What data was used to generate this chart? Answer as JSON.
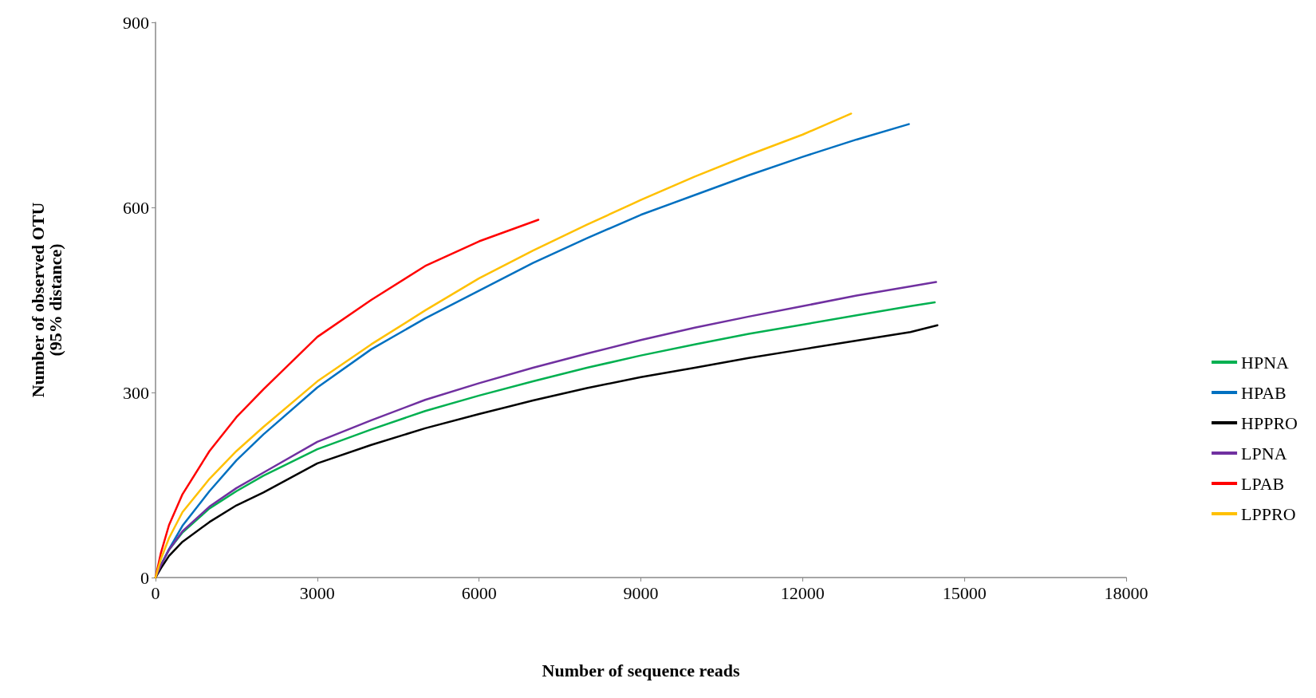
{
  "chart_data": {
    "type": "line",
    "xlabel": "Number of sequence reads",
    "ylabel": "Number of observed OTU\n(95% distance)",
    "xlim": [
      0,
      18000
    ],
    "xticks": [
      0,
      3000,
      6000,
      9000,
      12000,
      15000,
      18000
    ],
    "ylim": [
      0,
      900
    ],
    "yticks": [
      0,
      300,
      600,
      900
    ],
    "grid": false,
    "legend": "right",
    "marker": "none",
    "line_style": "solid",
    "series": [
      {
        "name": "HPNA",
        "color": "#00b050",
        "x": [
          0,
          100,
          250,
          500,
          1000,
          1500,
          2000,
          3000,
          4000,
          5000,
          6000,
          7000,
          8000,
          9000,
          10000,
          11000,
          12000,
          13000,
          14000,
          14450
        ],
        "values": [
          0,
          20,
          45,
          73,
          112,
          140,
          165,
          208,
          240,
          270,
          295,
          318,
          340,
          360,
          378,
          395,
          410,
          425,
          440,
          446
        ]
      },
      {
        "name": "HPAB",
        "color": "#0070c0",
        "x": [
          100,
          250,
          500,
          1000,
          1500,
          2000,
          3000,
          4000,
          5000,
          6000,
          7000,
          8000,
          9000,
          10000,
          11000,
          12000,
          13000,
          13970
        ],
        "values": [
          20,
          46,
          84,
          140,
          190,
          232,
          308,
          370,
          420,
          465,
          510,
          550,
          588,
          620,
          652,
          682,
          710,
          735
        ]
      },
      {
        "name": "HPPRO",
        "color": "#000000",
        "x": [
          0,
          100,
          250,
          500,
          1000,
          1500,
          2000,
          3000,
          4000,
          5000,
          6000,
          7000,
          8000,
          9000,
          10000,
          11000,
          12000,
          13000,
          14000,
          14500
        ],
        "values": [
          0,
          15,
          35,
          58,
          90,
          117,
          138,
          185,
          215,
          242,
          265,
          287,
          307,
          325,
          340,
          356,
          370,
          384,
          398,
          409
        ]
      },
      {
        "name": "LPNA",
        "color": "#7030a0",
        "x": [
          0,
          100,
          250,
          500,
          1000,
          1500,
          2000,
          3000,
          4000,
          5000,
          6000,
          7000,
          8000,
          9000,
          10000,
          11000,
          12000,
          13000,
          14000,
          14475
        ],
        "values": [
          0,
          20,
          45,
          75,
          115,
          145,
          170,
          220,
          255,
          288,
          315,
          340,
          363,
          385,
          405,
          423,
          440,
          457,
          472,
          479
        ]
      },
      {
        "name": "LPAB",
        "color": "#ff0000",
        "x": [
          0,
          100,
          250,
          500,
          1000,
          1500,
          2000,
          3000,
          4000,
          5000,
          6000,
          7100
        ],
        "values": [
          0,
          40,
          85,
          135,
          205,
          260,
          305,
          390,
          450,
          505,
          545,
          580
        ]
      },
      {
        "name": "LPPRO",
        "color": "#ffc000",
        "x": [
          0,
          100,
          250,
          500,
          1000,
          1500,
          2000,
          3000,
          4000,
          5000,
          6000,
          7000,
          8000,
          9000,
          10000,
          11000,
          12000,
          12900
        ],
        "values": [
          0,
          30,
          64,
          106,
          160,
          205,
          244,
          318,
          378,
          433,
          485,
          530,
          572,
          612,
          650,
          685,
          718,
          752
        ]
      }
    ]
  }
}
